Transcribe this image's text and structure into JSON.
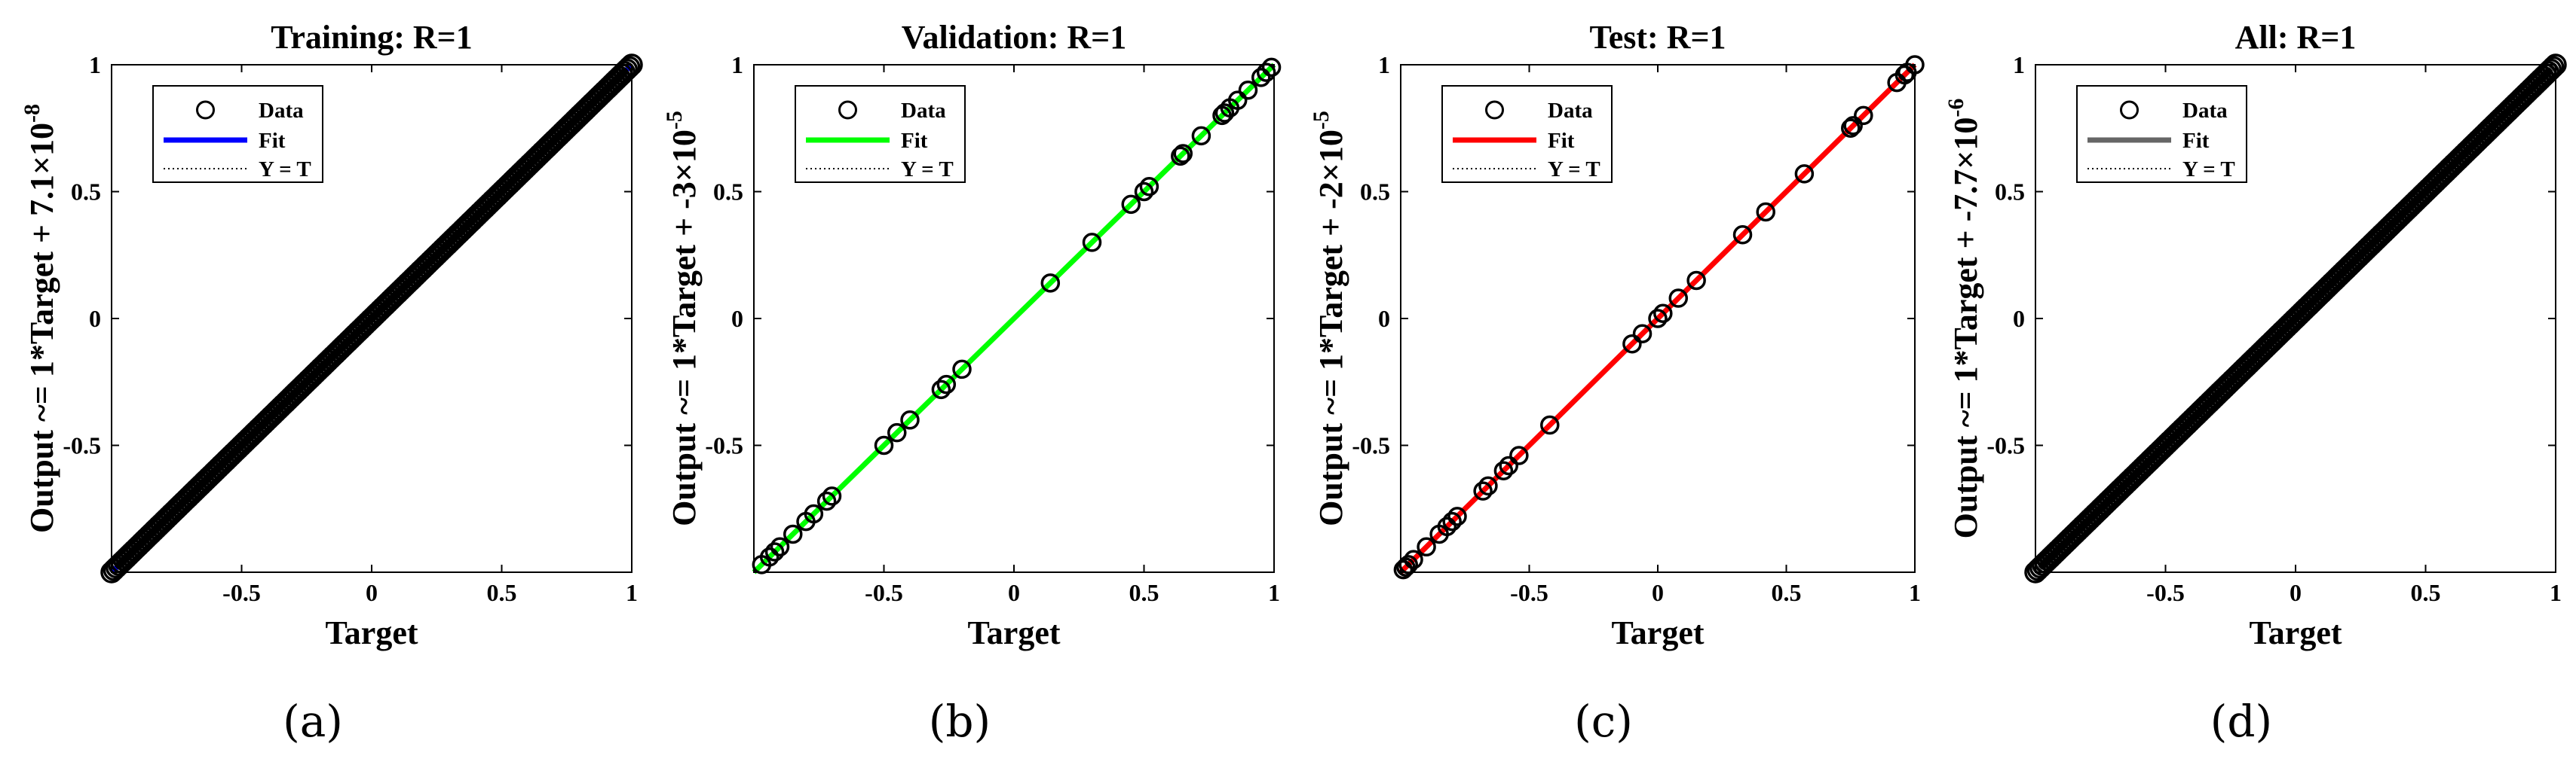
{
  "chart_data": [
    {
      "type": "scatter",
      "title": "Training: R=1",
      "xlabel": "Target",
      "ylabel": "Output ~= 1*Target + 7.1×10",
      "ylabel_exp": "-8",
      "xlim": [
        -1,
        1
      ],
      "ylim": [
        -1,
        1
      ],
      "xticks": [
        "-0.5",
        "0",
        "0.5",
        "1"
      ],
      "yticks": [
        "-0.5",
        "0",
        "0.5",
        "1"
      ],
      "fit_color": "#0000ff",
      "legend": [
        "Data",
        "Fit",
        "Y = T"
      ],
      "slope": 1,
      "intercept": 7.1e-08,
      "data_description": "dense",
      "caption": "(a)"
    },
    {
      "type": "scatter",
      "title": "Validation: R=1",
      "xlabel": "Target",
      "ylabel": "Output ~= 1*Target + -3×10",
      "ylabel_exp": "-5",
      "xlim": [
        -1,
        1
      ],
      "ylim": [
        -1,
        1
      ],
      "xticks": [
        "-0.5",
        "0",
        "0.5",
        "1"
      ],
      "yticks": [
        "-0.5",
        "0",
        "0.5",
        "1"
      ],
      "fit_color": "#00ff00",
      "legend": [
        "Data",
        "Fit",
        "Y = T"
      ],
      "slope": 1,
      "intercept": -3e-05,
      "points": [
        -0.97,
        -0.94,
        -0.92,
        -0.9,
        -0.85,
        -0.8,
        -0.77,
        -0.72,
        -0.7,
        -0.5,
        -0.45,
        -0.4,
        -0.28,
        -0.26,
        -0.2,
        0.14,
        0.3,
        0.45,
        0.5,
        0.52,
        0.64,
        0.65,
        0.72,
        0.8,
        0.81,
        0.83,
        0.86,
        0.9,
        0.95,
        0.97,
        0.99
      ],
      "caption": "(b)"
    },
    {
      "type": "scatter",
      "title": "Test: R=1",
      "xlabel": "Target",
      "ylabel": "Output ~= 1*Target + -2×10",
      "ylabel_exp": "-5",
      "xlim": [
        -1,
        1
      ],
      "ylim": [
        -1,
        1
      ],
      "xticks": [
        "-0.5",
        "0",
        "0.5",
        "1"
      ],
      "yticks": [
        "-0.5",
        "0",
        "0.5",
        "1"
      ],
      "fit_color": "#ff0000",
      "legend": [
        "Data",
        "Fit",
        "Y = T"
      ],
      "slope": 1,
      "intercept": -2e-05,
      "points": [
        -0.99,
        -0.98,
        -0.97,
        -0.95,
        -0.9,
        -0.85,
        -0.82,
        -0.8,
        -0.78,
        -0.68,
        -0.66,
        -0.6,
        -0.58,
        -0.54,
        -0.42,
        -0.1,
        -0.06,
        0.0,
        0.02,
        0.08,
        0.15,
        0.33,
        0.42,
        0.57,
        0.75,
        0.76,
        0.8,
        0.93,
        0.96,
        0.97,
        1.0
      ],
      "caption": "(c)"
    },
    {
      "type": "scatter",
      "title": "All: R=1",
      "xlabel": "Target",
      "ylabel": "Output ~= 1*Target + -7.7×10",
      "ylabel_exp": "-6",
      "xlim": [
        -1,
        1
      ],
      "ylim": [
        -1,
        1
      ],
      "xticks": [
        "-0.5",
        "0",
        "0.5",
        "1"
      ],
      "yticks": [
        "-0.5",
        "0",
        "0.5",
        "1"
      ],
      "fit_color": "#666666",
      "legend": [
        "Data",
        "Fit",
        "Y = T"
      ],
      "slope": 1,
      "intercept": -7.7e-06,
      "data_description": "dense",
      "caption": "(d)"
    }
  ]
}
